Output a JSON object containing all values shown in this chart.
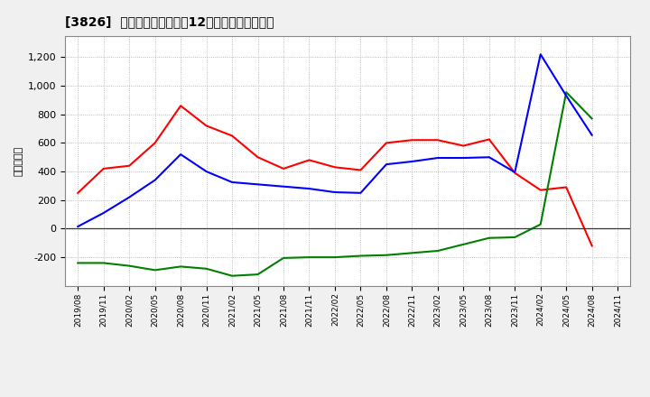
{
  "title": "[3826]  キャッシュフローの12か月移動合計の推移",
  "ylabel": "（百万円）",
  "background_color": "#f0f0f0",
  "plot_background": "#ffffff",
  "grid_color": "#aaaaaa",
  "x_labels": [
    "2019/08",
    "2019/11",
    "2020/02",
    "2020/05",
    "2020/08",
    "2020/11",
    "2021/02",
    "2021/05",
    "2021/08",
    "2021/11",
    "2022/02",
    "2022/05",
    "2022/08",
    "2022/11",
    "2023/02",
    "2023/05",
    "2023/08",
    "2023/11",
    "2024/02",
    "2024/05",
    "2024/08",
    "2024/11"
  ],
  "operating_cf": [
    250,
    420,
    440,
    600,
    860,
    720,
    650,
    500,
    420,
    480,
    430,
    410,
    600,
    620,
    620,
    580,
    625,
    390,
    270,
    290,
    -120,
    null
  ],
  "investing_cf": [
    -240,
    -240,
    -260,
    -290,
    -265,
    -280,
    -330,
    -320,
    -205,
    -200,
    -200,
    -190,
    -185,
    -170,
    -155,
    -110,
    -65,
    -60,
    30,
    955,
    770,
    null
  ],
  "free_cf": [
    15,
    110,
    220,
    340,
    520,
    400,
    325,
    310,
    295,
    280,
    255,
    250,
    450,
    470,
    495,
    495,
    500,
    395,
    1220,
    930,
    655,
    null
  ],
  "operating_color": "#ff0000",
  "investing_color": "#008000",
  "free_color": "#0000ff",
  "ylim": [
    -400,
    1350
  ],
  "yticks": [
    -200,
    0,
    200,
    400,
    600,
    800,
    1000,
    1200
  ]
}
